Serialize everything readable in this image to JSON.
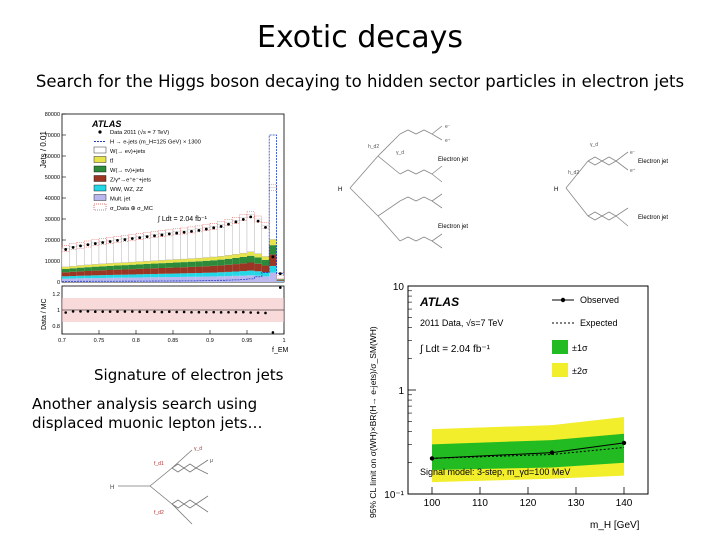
{
  "slide": {
    "title": "Exotic decays",
    "subtitle": "Search for the Higgs boson decaying to hidden sector particles in electron jets",
    "caption_electron": "Signature of electron jets",
    "caption_muon": "Another analysis search using displaced muonic lepton jets…"
  },
  "histogram": {
    "atlas_label": "ATLAS",
    "y_label": "Jets / 0.01",
    "ratio_label": "Data / MC",
    "x_label": "f_EM",
    "lumi": "∫ Ldt = 2.04 fb⁻¹",
    "legend": [
      {
        "label": "Data 2011 (√s = 7 TeV)",
        "color": "#000000",
        "kind": "dot"
      },
      {
        "label": "H → e-jets (m_H=125 GeV) × 1300",
        "color": "#1f3fbf",
        "kind": "line"
      },
      {
        "label": "W(→ eν)+jets",
        "color": "#ffffff",
        "kind": "box"
      },
      {
        "label": "tt̄",
        "color": "#e7e34a",
        "kind": "box"
      },
      {
        "label": "W(→ τν)+jets",
        "color": "#2d8a3a",
        "kind": "box"
      },
      {
        "label": "Z/γ*→e⁺e⁻+jets",
        "color": "#9b3524",
        "kind": "box"
      },
      {
        "label": "WW, WZ, ZZ",
        "color": "#23d7e6",
        "kind": "box"
      },
      {
        "label": "Mult. jet",
        "color": "#b9b7ee",
        "kind": "box"
      },
      {
        "label": "σ_Data ⊕ σ_MC",
        "color": "#d9534f",
        "kind": "hatch"
      }
    ]
  },
  "chart_data": [
    {
      "type": "bar",
      "title": "",
      "xlabel": "f_EM",
      "ylabel": "Jets / 0.01",
      "ylim": [
        0,
        80000
      ],
      "y_ticks": [
        0,
        10000,
        20000,
        30000,
        40000,
        50000,
        60000,
        70000,
        80000
      ],
      "x_ticks": [
        "0.7",
        "0.75",
        "0.8",
        "0.85",
        "0.9",
        "0.95",
        "1"
      ],
      "xlim": [
        0.7,
        1.0
      ],
      "data_points": {
        "x": [
          0.705,
          0.715,
          0.725,
          0.735,
          0.745,
          0.755,
          0.765,
          0.775,
          0.785,
          0.795,
          0.805,
          0.815,
          0.825,
          0.835,
          0.845,
          0.855,
          0.865,
          0.875,
          0.885,
          0.895,
          0.905,
          0.915,
          0.925,
          0.935,
          0.945,
          0.955,
          0.965,
          0.975,
          0.985,
          0.995
        ],
        "y": [
          15500,
          16500,
          17200,
          17800,
          18300,
          18800,
          19300,
          19800,
          20200,
          20700,
          21100,
          21600,
          22000,
          22400,
          22900,
          23300,
          23700,
          24100,
          24600,
          25200,
          25800,
          26500,
          27500,
          28600,
          29800,
          31000,
          29000,
          26000,
          12000,
          4000
        ]
      },
      "stack_top": [
        16000,
        16800,
        17500,
        18100,
        18700,
        19200,
        19700,
        20200,
        20600,
        21100,
        21600,
        22100,
        22500,
        23000,
        23400,
        23900,
        24300,
        24800,
        25300,
        25900,
        26500,
        27300,
        28300,
        29400,
        30600,
        32000,
        30000,
        27000,
        45000,
        3000
      ],
      "signal": [
        300,
        300,
        320,
        330,
        340,
        350,
        360,
        370,
        380,
        390,
        400,
        420,
        440,
        460,
        480,
        500,
        520,
        550,
        600,
        650,
        700,
        800,
        900,
        1000,
        1200,
        1500,
        2500,
        4500,
        70000,
        4000
      ]
    },
    {
      "type": "line",
      "title": "",
      "xlabel": "m_H [GeV]",
      "ylabel": "95% CL limit on σ(WH)×BR(H→ e-jets)/σ_SM(WH)",
      "y_scale": "log",
      "ylim": [
        0.1,
        10
      ],
      "y_ticks": [
        "10⁻¹",
        "1",
        "10"
      ],
      "xlim": [
        95,
        145
      ],
      "x_ticks": [
        100,
        110,
        120,
        130,
        140
      ],
      "series": [
        {
          "name": "Observed",
          "x": [
            100,
            125,
            140
          ],
          "y": [
            0.22,
            0.25,
            0.31
          ]
        },
        {
          "name": "Expected",
          "x": [
            100,
            125,
            140
          ],
          "y": [
            0.22,
            0.24,
            0.28
          ]
        }
      ],
      "band_1sigma": {
        "low": [
          0.17,
          0.18,
          0.2
        ],
        "high": [
          0.3,
          0.33,
          0.38
        ]
      },
      "band_2sigma": {
        "low": [
          0.13,
          0.14,
          0.15
        ],
        "high": [
          0.42,
          0.46,
          0.55
        ]
      },
      "legend": [
        "Observed",
        "Expected",
        "±1σ",
        "±2σ"
      ],
      "atlas_label": "ATLAS",
      "annotation_data": "2011 Data, √s=7 TeV",
      "annotation_lumi": "∫ Ldt = 2.04 fb⁻¹",
      "annotation_model": "Signal model: 3-step, m_γd=100 MeV",
      "legend_colors": {
        "one_sigma": "#22bb22",
        "two_sigma": "#f2ee2c"
      }
    }
  ],
  "diagrams": {
    "electron_2step": {
      "labels": [
        "h_d2",
        "γ_d",
        "e⁻",
        "e⁺",
        "Electron jet",
        "H",
        "Electron jet"
      ]
    },
    "electron_3step": {
      "labels": [
        "h_d2",
        "γ_d",
        "e⁻",
        "e⁺",
        "Electron jet",
        "H",
        "Electron jet"
      ]
    },
    "muon": {
      "labels": [
        "f_d1",
        "f_d2",
        "γ_d",
        "μ",
        "H"
      ]
    }
  }
}
